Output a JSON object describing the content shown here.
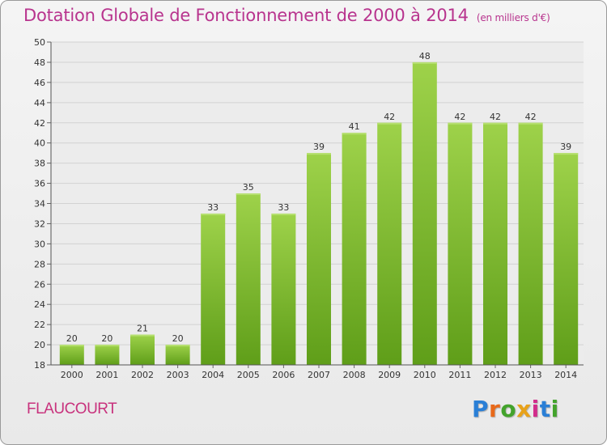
{
  "header": {
    "title": "Dotation Globale de Fonctionnement de 2000 à 2014",
    "subtitle": "(en milliers d'€)"
  },
  "footer": {
    "commune": "FLAUCOURT",
    "logo": "Proxiti"
  },
  "colors": {
    "bar_top": "#9ed24a",
    "bar_bottom": "#5f9e19",
    "title": "#b8348e"
  },
  "chart_data": {
    "type": "bar",
    "categories": [
      "2000",
      "2001",
      "2002",
      "2003",
      "2004",
      "2005",
      "2006",
      "2007",
      "2008",
      "2009",
      "2010",
      "2011",
      "2012",
      "2013",
      "2014"
    ],
    "values": [
      20,
      20,
      21,
      20,
      33,
      35,
      33,
      39,
      41,
      42,
      48,
      42,
      42,
      42,
      39
    ],
    "ylim": [
      18,
      50
    ],
    "yticks": [
      18,
      20,
      22,
      24,
      26,
      28,
      30,
      32,
      34,
      36,
      38,
      40,
      42,
      44,
      46,
      48,
      50
    ],
    "grid": true,
    "legend": "none"
  }
}
